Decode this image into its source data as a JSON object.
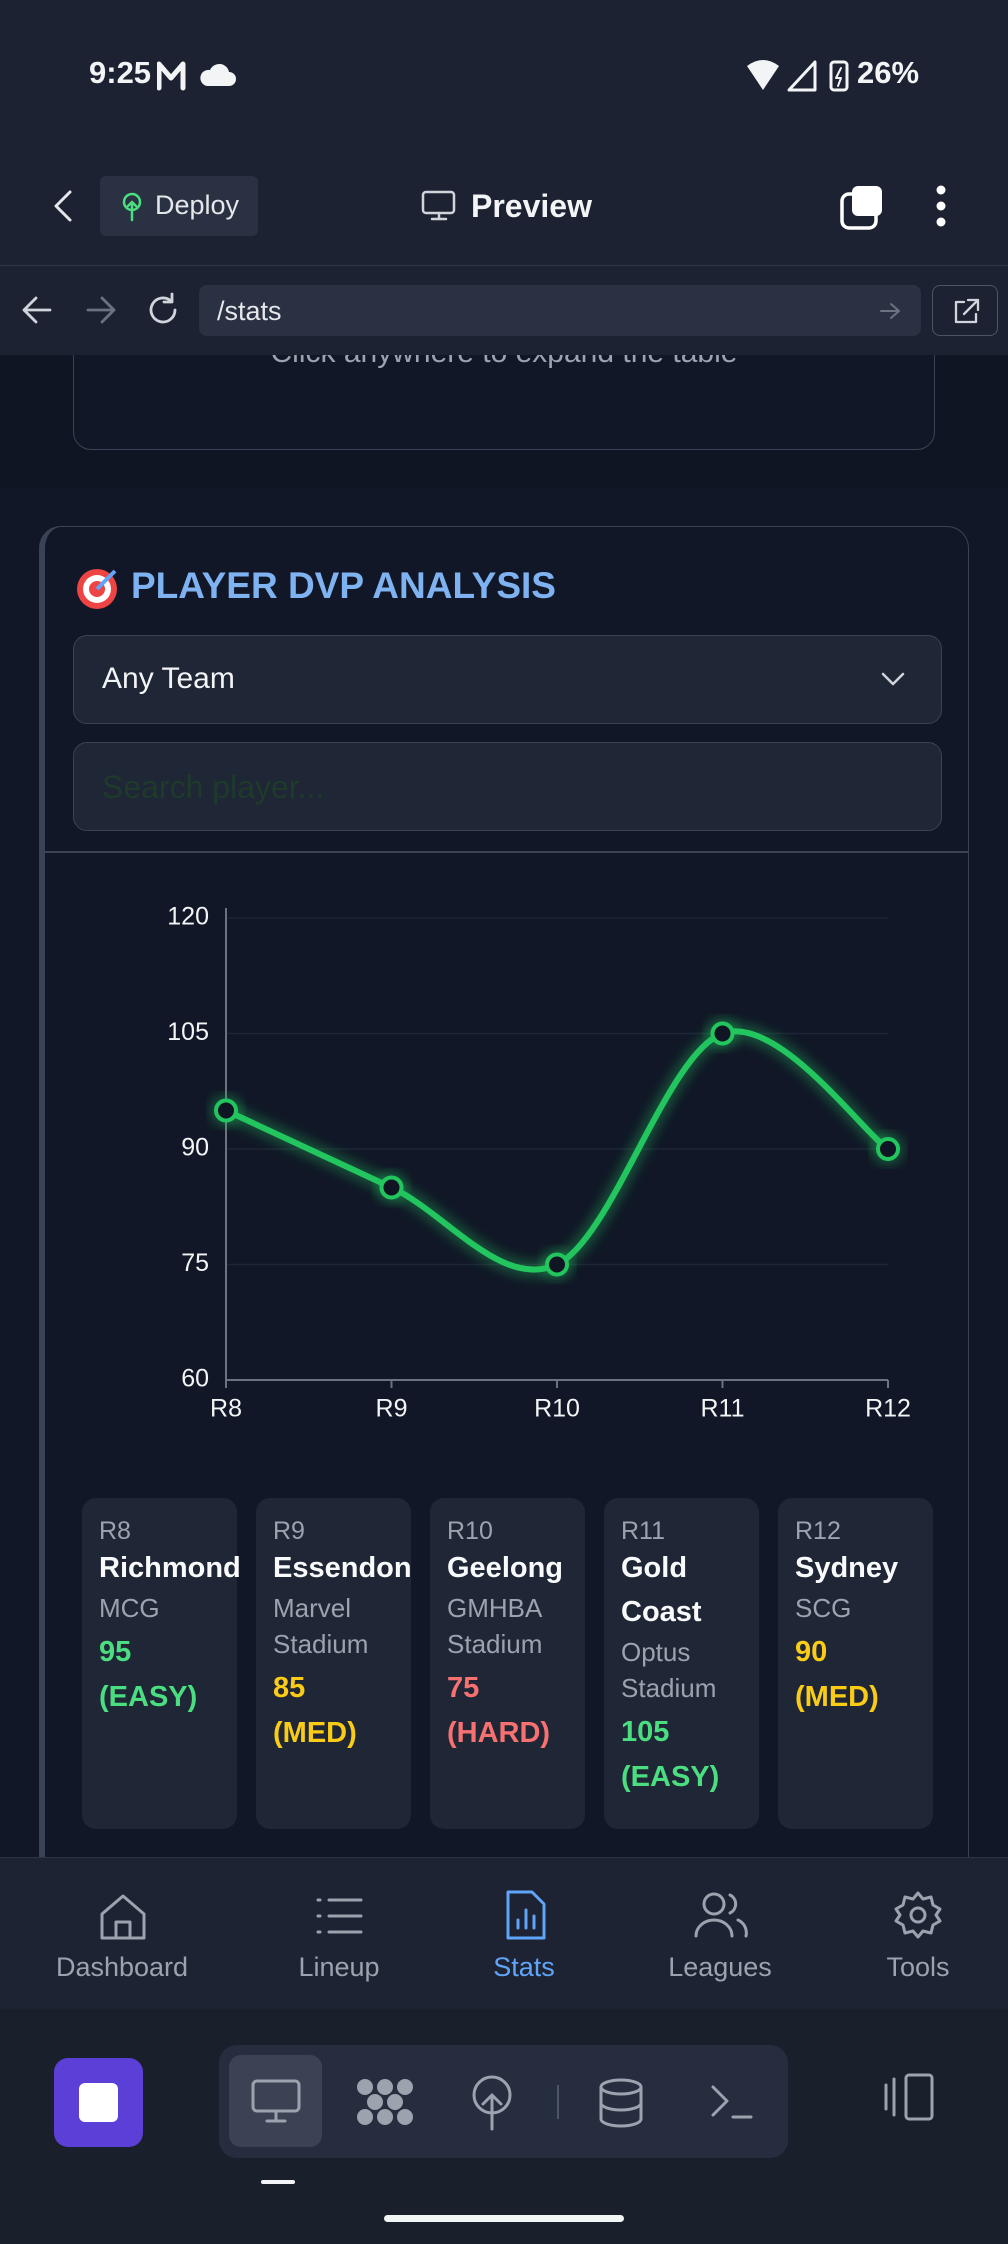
{
  "status_bar": {
    "time": "9:25",
    "battery": "26%"
  },
  "toolbar": {
    "deploy": "Deploy",
    "preview": "Preview"
  },
  "address_bar": {
    "url": "/stats"
  },
  "table_card": {
    "hint": "Click anywhere to expand the table"
  },
  "dvp_panel": {
    "title": "PLAYER DVP ANALYSIS",
    "team_select": "Any Team",
    "search_placeholder": "Search player..."
  },
  "chart_data": {
    "type": "line",
    "categories": [
      "R8",
      "R9",
      "R10",
      "R11",
      "R12"
    ],
    "values": [
      95,
      85,
      75,
      105,
      90
    ],
    "color": "#22c55e",
    "ylim": [
      60,
      120
    ],
    "yticks": [
      60,
      75,
      90,
      105,
      120
    ],
    "grid": true
  },
  "fixtures": [
    {
      "round": "R8",
      "opponent": "Richmond",
      "venue": "MCG",
      "score": 95,
      "rating": "(EASY)",
      "color": "#4ade80"
    },
    {
      "round": "R9",
      "opponent": "Essendon",
      "venue": "Marvel Stadium",
      "score": 85,
      "rating": "(MED)",
      "color": "#facc15"
    },
    {
      "round": "R10",
      "opponent": "Geelong",
      "venue": "GMHBA Stadium",
      "score": 75,
      "rating": "(HARD)",
      "color": "#f87171"
    },
    {
      "round": "R11",
      "opponent": "Gold Coast",
      "venue": "Optus Stadium",
      "score": 105,
      "rating": "(EASY)",
      "color": "#4ade80"
    },
    {
      "round": "R12",
      "opponent": "Sydney",
      "venue": "SCG",
      "score": 90,
      "rating": "(MED)",
      "color": "#facc15"
    }
  ],
  "bottom_nav": [
    {
      "label": "Dashboard",
      "active": false
    },
    {
      "label": "Lineup",
      "active": false
    },
    {
      "label": "Stats",
      "active": true
    },
    {
      "label": "Leagues",
      "active": false
    },
    {
      "label": "Tools",
      "active": false
    }
  ]
}
